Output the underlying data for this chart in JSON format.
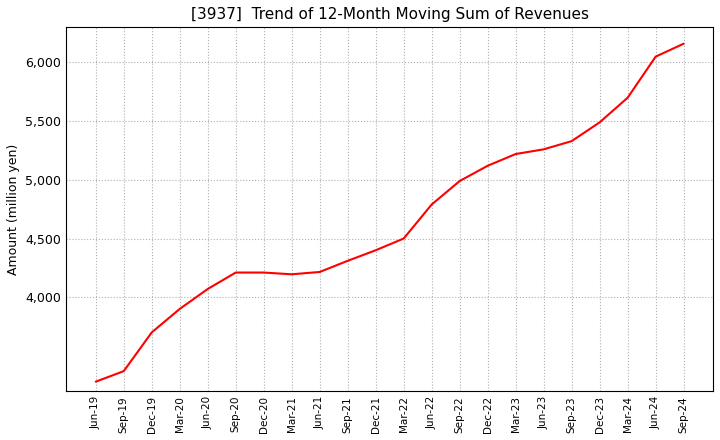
{
  "title": "[3937]  Trend of 12-Month Moving Sum of Revenues",
  "ylabel": "Amount (million yen)",
  "line_color": "#ff0000",
  "background_color": "#ffffff",
  "grid_color": "#b0b0b0",
  "ylim": [
    3200,
    6300
  ],
  "yticks": [
    4000,
    4500,
    5000,
    5500,
    6000
  ],
  "x_labels": [
    "Jun-19",
    "Sep-19",
    "Dec-19",
    "Mar-20",
    "Jun-20",
    "Sep-20",
    "Dec-20",
    "Mar-21",
    "Jun-21",
    "Sep-21",
    "Dec-21",
    "Mar-22",
    "Jun-22",
    "Sep-22",
    "Dec-22",
    "Mar-23",
    "Jun-23",
    "Sep-23",
    "Dec-23",
    "Mar-24",
    "Jun-24",
    "Sep-24"
  ],
  "values": [
    3280,
    3370,
    3700,
    3900,
    4070,
    4210,
    4210,
    4195,
    4215,
    4310,
    4400,
    4500,
    4790,
    4990,
    5120,
    5220,
    5260,
    5330,
    5490,
    5700,
    6050,
    6160
  ]
}
